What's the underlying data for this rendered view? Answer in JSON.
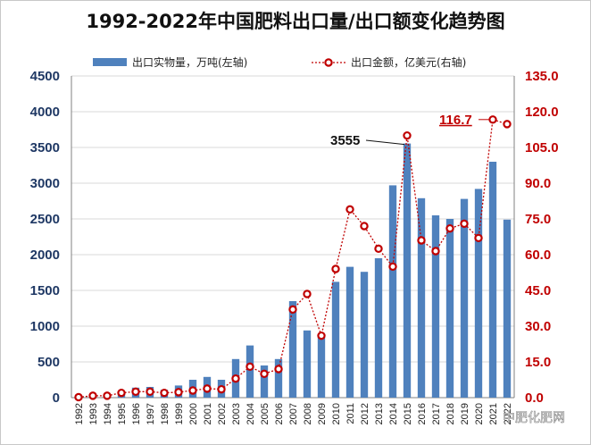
{
  "chart_data": {
    "type": "bar",
    "title": "1992-2022年中国肥料出口量/出口额变化趋势图",
    "x": [
      "1992",
      "1993",
      "1994",
      "1995",
      "1996",
      "1997",
      "1998",
      "1999",
      "2000",
      "2001",
      "2002",
      "2003",
      "2004",
      "2005",
      "2006",
      "2007",
      "2008",
      "2009",
      "2010",
      "2011",
      "2012",
      "2013",
      "2014",
      "2015",
      "2016",
      "2017",
      "2018",
      "2019",
      "2020",
      "2021",
      "2022"
    ],
    "series": [
      {
        "name": "出口实物量，万吨(左轴)",
        "type": "bar",
        "axis": "left",
        "color": "#4f81bd",
        "values": [
          10,
          30,
          40,
          70,
          140,
          150,
          110,
          170,
          250,
          290,
          250,
          540,
          730,
          450,
          540,
          1350,
          940,
          890,
          1620,
          1830,
          1760,
          1950,
          2970,
          3555,
          2790,
          2550,
          2500,
          2780,
          2920,
          3300,
          2490
        ]
      },
      {
        "name": "出口金额，亿美元(右轴)",
        "type": "line",
        "axis": "right",
        "color": "#c00000",
        "values": [
          0.2,
          0.8,
          0.8,
          2.0,
          2.5,
          2.5,
          2.0,
          2.3,
          3.0,
          3.8,
          3.5,
          8.0,
          13.0,
          10.0,
          12.0,
          37.0,
          43.5,
          26.0,
          54.0,
          79.0,
          72.0,
          62.5,
          55.0,
          110.0,
          66.0,
          61.5,
          71.0,
          73.0,
          67.0,
          116.7,
          114.8
        ]
      }
    ],
    "y_left": {
      "ylim": [
        0,
        4500
      ],
      "ticks": [
        "0",
        "500",
        "1000",
        "1500",
        "2000",
        "2500",
        "3000",
        "3500",
        "4000",
        "4500"
      ]
    },
    "y_right": {
      "ylim": [
        0,
        135
      ],
      "ticks": [
        "0.0",
        "15.0",
        "30.0",
        "45.0",
        "60.0",
        "75.0",
        "90.0",
        "105.0",
        "120.0",
        "135.0"
      ]
    },
    "annotations": [
      {
        "text": "3555",
        "x": "2015",
        "series": 0,
        "value": 3555,
        "color": "#111111"
      },
      {
        "text": "116.7",
        "x": "2021",
        "series": 1,
        "value": 116.7,
        "color": "#c00000"
      }
    ],
    "legend_position": "top",
    "grid": true,
    "watermark": "中肥化肥网"
  }
}
